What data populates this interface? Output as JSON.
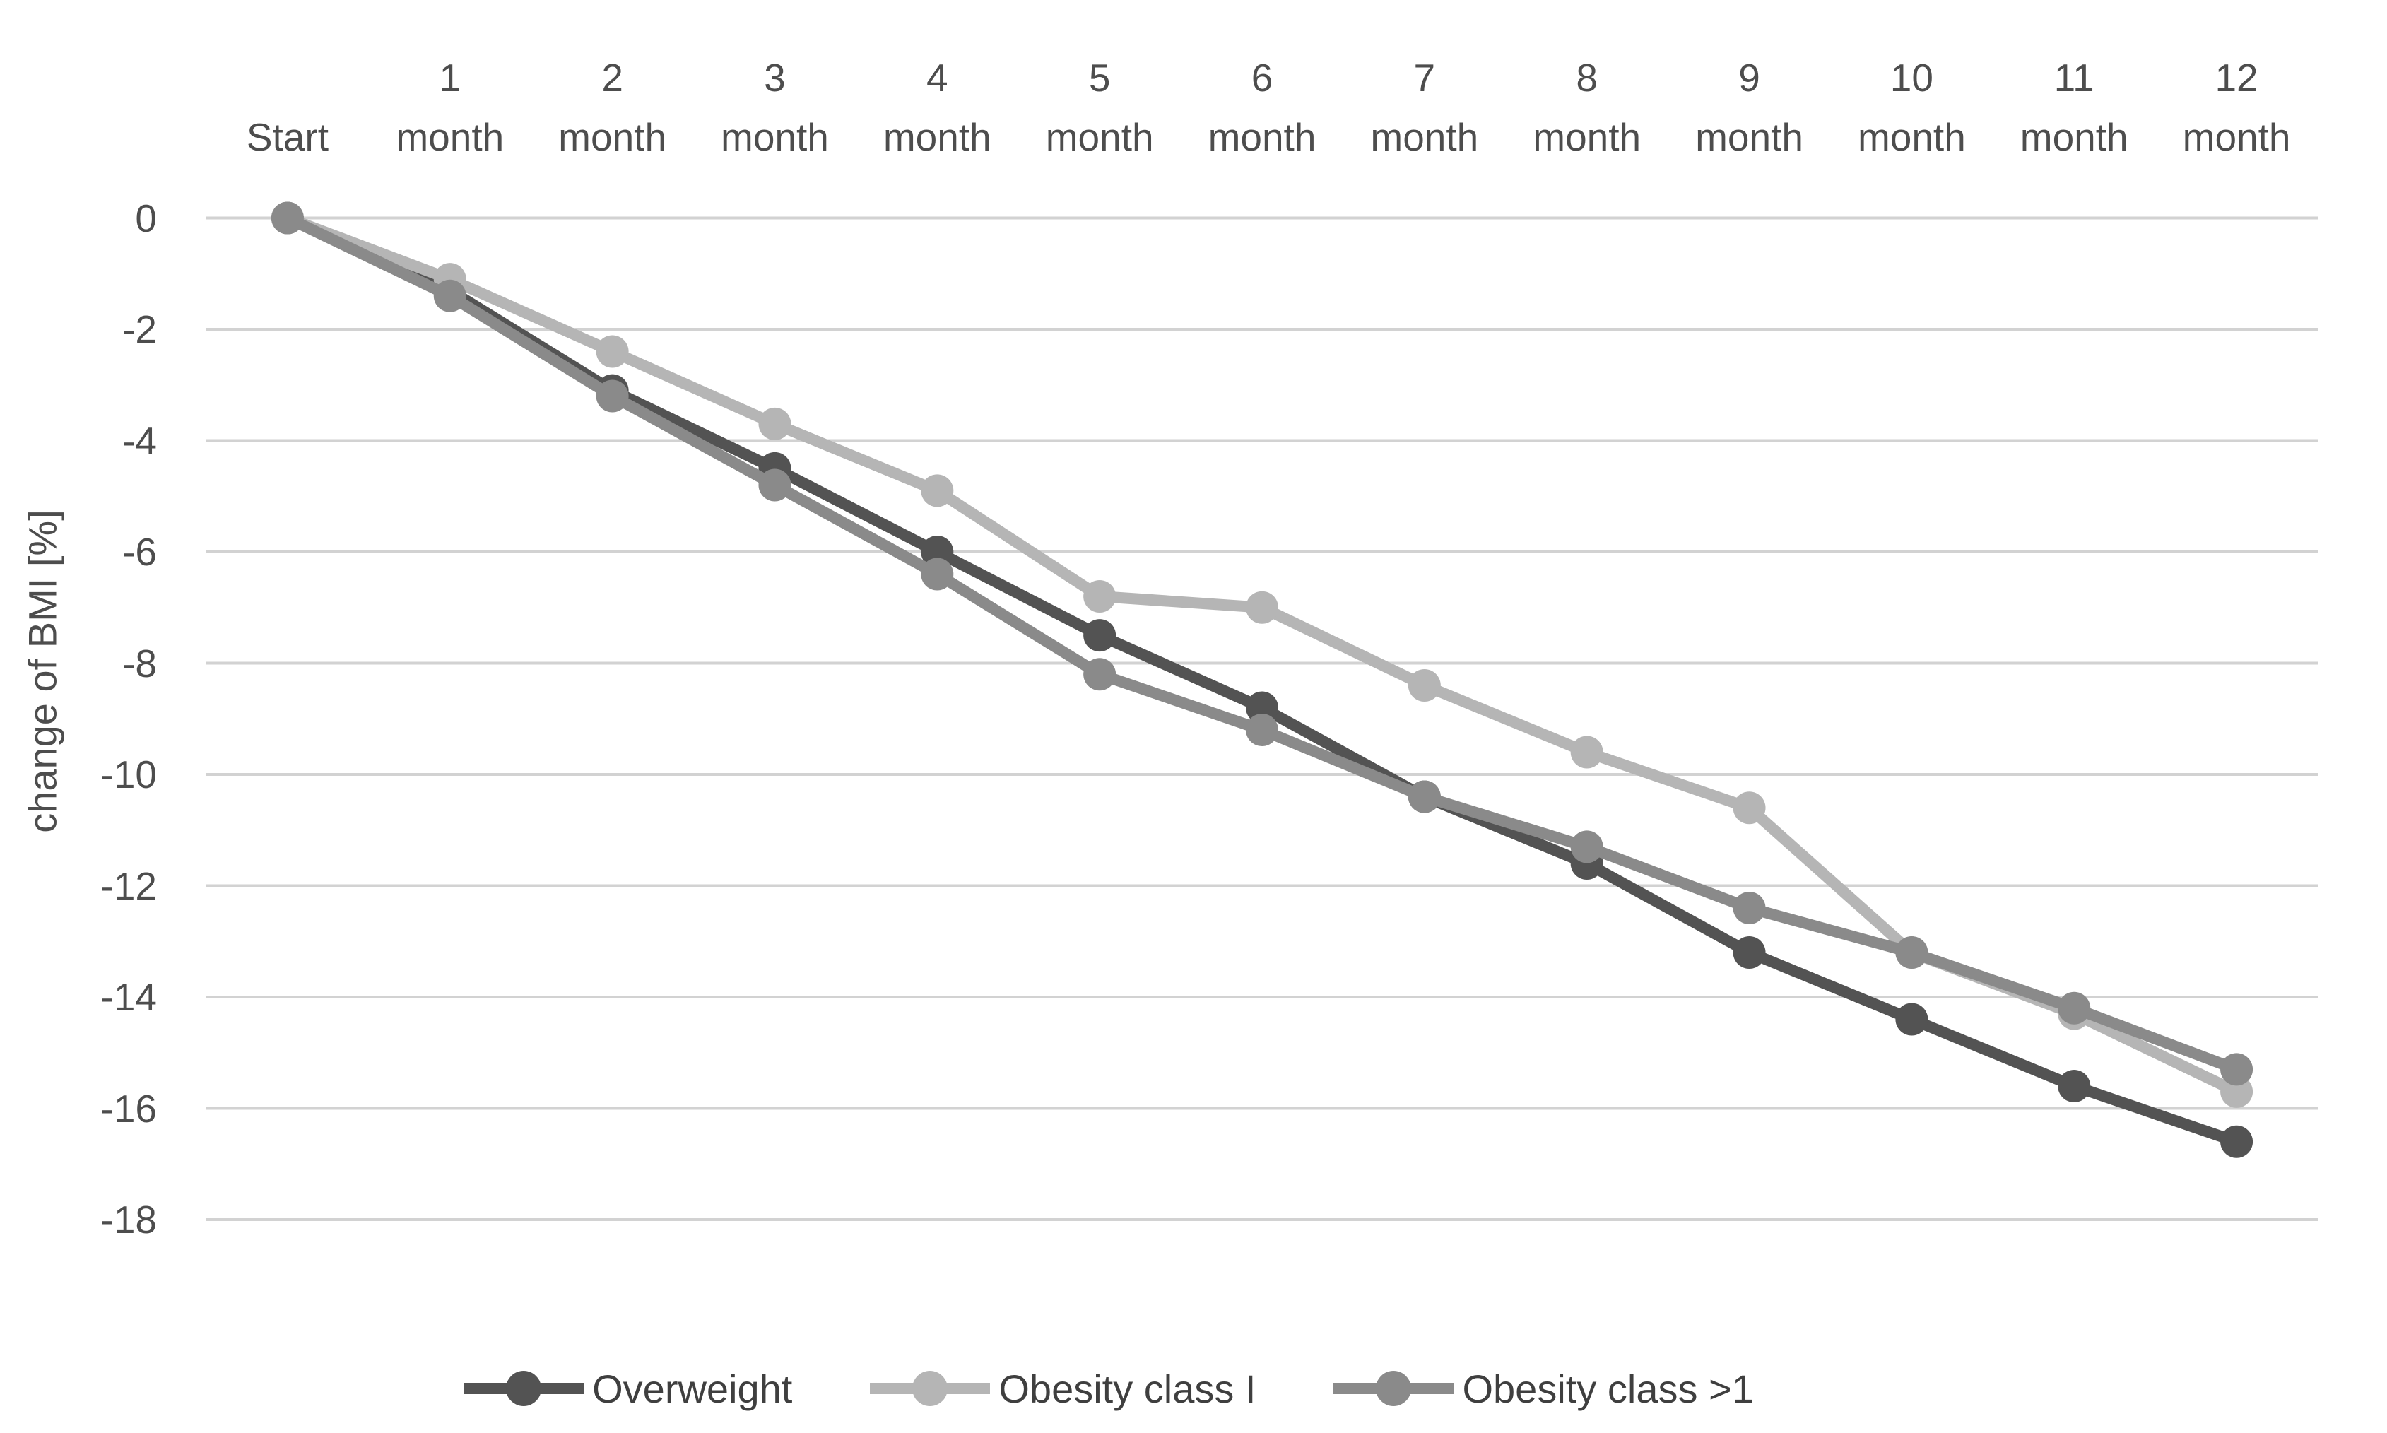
{
  "chart_data": {
    "type": "line",
    "title": "",
    "xlabel": "",
    "ylabel": "change of BMI [%]",
    "categories": [
      "Start",
      "1 month",
      "2 month",
      "3 month",
      "4 month",
      "5 month",
      "6 month",
      "7 month",
      "8 month",
      "9 month",
      "10 month",
      "11 month",
      "12 month"
    ],
    "category_lines": [
      {
        "num": "",
        "text": "Start"
      },
      {
        "num": "1",
        "text": "month"
      },
      {
        "num": "2",
        "text": "month"
      },
      {
        "num": "3",
        "text": "month"
      },
      {
        "num": "4",
        "text": "month"
      },
      {
        "num": "5",
        "text": "month"
      },
      {
        "num": "6",
        "text": "month"
      },
      {
        "num": "7",
        "text": "month"
      },
      {
        "num": "8",
        "text": "month"
      },
      {
        "num": "9",
        "text": "month"
      },
      {
        "num": "10",
        "text": "month"
      },
      {
        "num": "11",
        "text": "month"
      },
      {
        "num": "12",
        "text": "month"
      }
    ],
    "series": [
      {
        "name": "Overweight",
        "color": "#535353",
        "values": [
          0,
          -1.3,
          -3.1,
          -4.5,
          -6.0,
          -7.5,
          -8.8,
          -10.4,
          -11.6,
          -13.2,
          -14.4,
          -15.6,
          -16.6
        ]
      },
      {
        "name": "Obesity class I",
        "color": "#b5b5b5",
        "values": [
          0,
          -1.1,
          -2.4,
          -3.7,
          -4.9,
          -6.8,
          -7.0,
          -8.4,
          -9.6,
          -10.6,
          -13.2,
          -14.3,
          -15.7
        ]
      },
      {
        "name": "Obesity class >1",
        "color": "#8a8a8a",
        "values": [
          0,
          -1.4,
          -3.2,
          -4.8,
          -6.4,
          -8.2,
          -9.2,
          -10.4,
          -11.3,
          -12.4,
          -13.2,
          -14.2,
          -15.3
        ]
      }
    ],
    "yticks": [
      "0",
      "-2",
      "-4",
      "-6",
      "-8",
      "-10",
      "-12",
      "-14",
      "-16",
      "-18"
    ],
    "ylim": [
      -18,
      0
    ],
    "ytick_step": 2,
    "grid": true,
    "gridline_color": "#d2d2d2",
    "marker": "circle",
    "legend_position": "bottom"
  }
}
